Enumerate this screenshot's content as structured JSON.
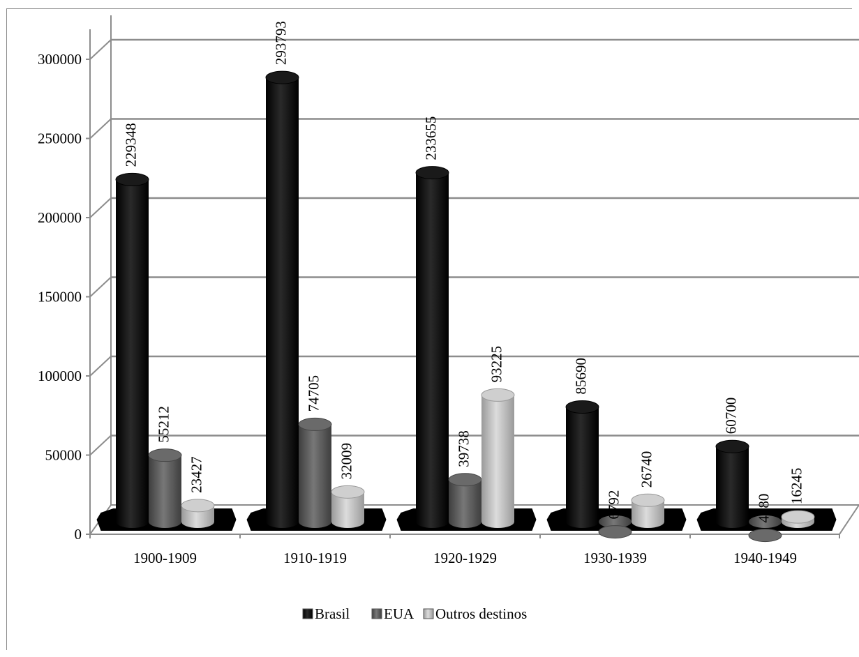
{
  "chart_data": {
    "type": "bar",
    "categories": [
      "1900-1909",
      "1910-1919",
      "1920-1929",
      "1930-1939",
      "1940-1949"
    ],
    "series": [
      {
        "name": "Brasil",
        "values": [
          229348,
          293793,
          233655,
          85690,
          60700
        ]
      },
      {
        "name": "EUA",
        "values": [
          55212,
          74705,
          39738,
          6792,
          4580
        ]
      },
      {
        "name": "Outros destinos",
        "values": [
          23427,
          32009,
          93225,
          26740,
          16245
        ]
      }
    ],
    "ylim": [
      0,
      300000
    ],
    "yticks": [
      0,
      50000,
      100000,
      150000,
      200000,
      250000,
      300000
    ],
    "grid": true,
    "legend": "bottom",
    "style": "3d-cylinder",
    "colors": {
      "Brasil": "#0a0a0a",
      "EUA": "#595959",
      "Outros destinos": "#b8b8b8"
    }
  }
}
